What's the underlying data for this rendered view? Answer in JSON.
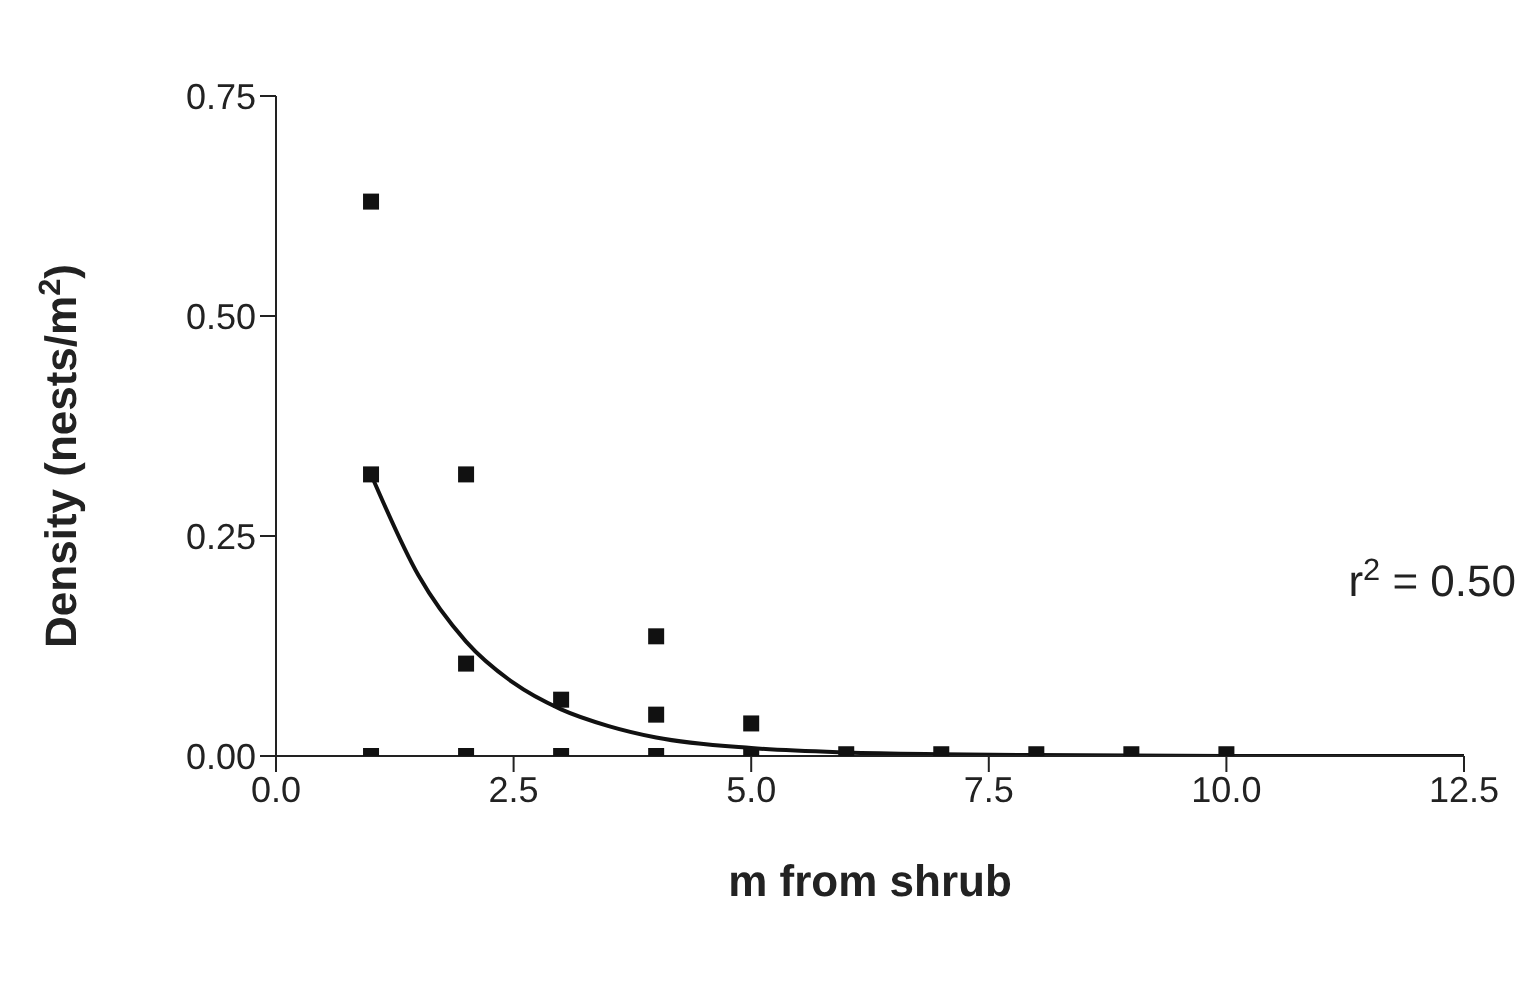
{
  "chart_data": {
    "type": "scatter",
    "xlabel": "m from shrub",
    "ylabel": "Density (nests/m$^{2}$)",
    "marker": "square",
    "xlim": [
      0,
      12.5
    ],
    "xticks": [
      {
        "value": 0,
        "label": "0.0"
      },
      {
        "value": 2.5,
        "label": "2.5"
      },
      {
        "value": 5,
        "label": "5.0"
      },
      {
        "value": 7.5,
        "label": "7.5"
      },
      {
        "value": 10,
        "label": "10.0"
      },
      {
        "value": 12.5,
        "label": "12.5"
      }
    ],
    "ylim": [
      0,
      0.75
    ],
    "yticks": [
      {
        "value": 0,
        "label": "0.00"
      },
      {
        "value": 0.25,
        "label": "0.25"
      },
      {
        "value": 0.5,
        "label": "0.50"
      },
      {
        "value": 0.75,
        "label": "0.75"
      }
    ],
    "annotations": [
      "r$^{2}$ = 0.50"
    ],
    "series": [
      {
        "color": "#111111",
        "x": [
          1,
          1,
          1,
          2,
          2,
          2,
          3,
          3,
          4,
          4,
          4,
          5,
          5,
          6,
          7,
          8,
          9,
          10
        ],
        "values": [
          0.63,
          0.32,
          0,
          0.32,
          0.105,
          0,
          0.064,
          0,
          0.136,
          0.047,
          0,
          0.037,
          0,
          0.002,
          0.002,
          0.002,
          0.002,
          0.002
        ]
      },
      {
        "type": "line",
        "color": "#111111",
        "marker": "none",
        "x": [
          1,
          1.5,
          2,
          2.5,
          3,
          3.5,
          4,
          5,
          6,
          7,
          8,
          10,
          12.5
        ],
        "values": [
          0.32,
          0.205,
          0.13,
          0.083,
          0.053,
          0.034,
          0.021,
          0.009,
          0.004,
          0.002,
          0.001,
          0,
          0
        ]
      }
    ]
  }
}
